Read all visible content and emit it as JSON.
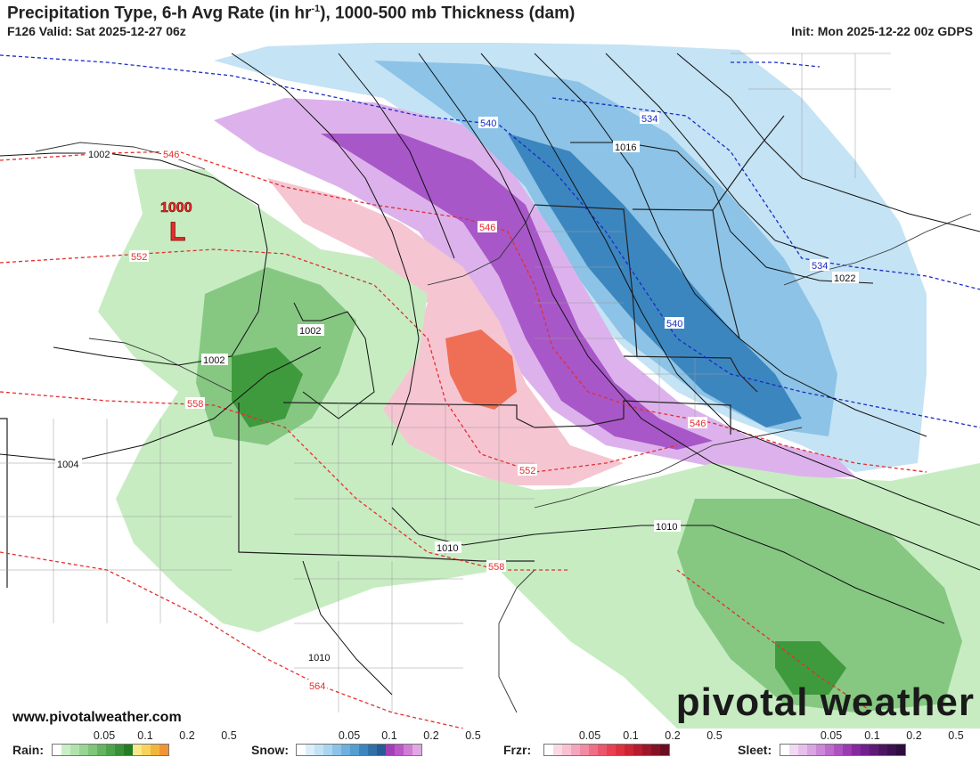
{
  "header": {
    "title_a": "Precipitation Type, 6-h Avg Rate (in hr",
    "title_sup": "-1",
    "title_b": "), 1000-500 mb Thickness (dam)",
    "valid": "F126 Valid: Sat 2025-12-27 06z",
    "init": "Init: Mon 2025-12-22 00z GDPS"
  },
  "map": {
    "low_pressure": {
      "value": "1000",
      "symbol": "L"
    },
    "isobar_labels": [
      "1002",
      "1002",
      "1002",
      "1004",
      "1010",
      "1010",
      "1010",
      "1016",
      "1022"
    ],
    "thickness_labels_blue": [
      "540",
      "534",
      "534",
      "540"
    ],
    "thickness_labels_red": [
      "546",
      "546",
      "546",
      "552",
      "552",
      "558",
      "558",
      "564"
    ],
    "site": "www.pivotalweather.com",
    "brand": "pivotal weather"
  },
  "legend": {
    "rain": {
      "label": "Rain:",
      "ticks": [
        "0.05",
        "0.1",
        "0.2",
        "0.5"
      ],
      "colors": [
        "#ffffff",
        "#c9efc6",
        "#b2e3ad",
        "#98d493",
        "#7fc57a",
        "#65b460",
        "#4ea34a",
        "#3a9036",
        "#237d25",
        "#f7e98a",
        "#f7d35a",
        "#f3b43c",
        "#f19432"
      ]
    },
    "snow": {
      "label": "Snow:",
      "ticks": [
        "0.05",
        "0.1",
        "0.2",
        "0.5"
      ],
      "colors": [
        "#ffffff",
        "#dbeefa",
        "#c3e3f5",
        "#a8d5ef",
        "#8cc3e6",
        "#6fb0dc",
        "#569dd0",
        "#3c86bf",
        "#2f70a8",
        "#245c93",
        "#a23fb6",
        "#bb58c7",
        "#d07dd6",
        "#e0a7e2"
      ]
    },
    "frzr": {
      "label": "Frzr:",
      "ticks": [
        "0.05",
        "0.1",
        "0.2",
        "0.5"
      ],
      "colors": [
        "#ffffff",
        "#fbd9e3",
        "#f8c2d2",
        "#f5a6bd",
        "#f28ba3",
        "#ef6f88",
        "#ec566d",
        "#e84052",
        "#de3140",
        "#cb2535",
        "#b61c2f",
        "#9e1629",
        "#851224",
        "#6c0e20"
      ]
    },
    "sleet": {
      "label": "Sleet:",
      "ticks": [
        "0.05",
        "0.1",
        "0.2",
        "0.5"
      ],
      "colors": [
        "#ffffff",
        "#f1d9f3",
        "#e6c0ea",
        "#d9a4e1",
        "#cb88d7",
        "#bd6bcc",
        "#ae52c1",
        "#9a3bb2",
        "#85299f",
        "#71218b",
        "#5e1b76",
        "#4c1662",
        "#3c1250",
        "#2e0e3e"
      ]
    }
  },
  "colors": {
    "rain_light": "#c7ecc2",
    "rain_mid": "#86c882",
    "rain_heavy": "#3f9a3d",
    "snow_light": "#c4e3f4",
    "snow_mid": "#7fb9de",
    "snow_heavy": "#2e7eae",
    "frzr_light": "#f6c5d2",
    "frzr_heavy": "#ee6f55",
    "sleet_light": "#ddb2ec",
    "sleet_heavy": "#a857c8"
  }
}
